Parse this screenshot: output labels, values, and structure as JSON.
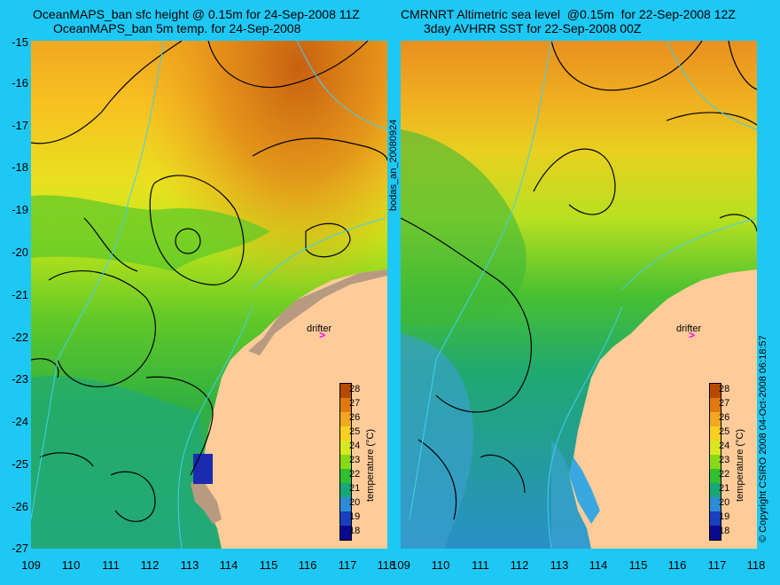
{
  "left_title": {
    "line1": "OceanMAPS_ban sfc height @ 0.15m for 24-Sep-2008 11Z",
    "line2": "OceanMAPS_ban 5m temp. for 24-Sep-2008"
  },
  "right_title": {
    "line1": "CMRNRT Altimetric sea level  @0.15m  for 22-Sep-2008 12Z",
    "line2": "3day AVHRR SST for 22-Sep-2008 00Z"
  },
  "lat_ticks": [
    "-15",
    "-16",
    "-17",
    "-18",
    "-19",
    "-20",
    "-21",
    "-22",
    "-23",
    "-24",
    "-25",
    "-26",
    "-27"
  ],
  "lon_ticks": [
    "109",
    "110",
    "111",
    "112",
    "113",
    "114",
    "115",
    "116",
    "117",
    "118"
  ],
  "colorbar": {
    "title": "temperature (°C)",
    "ticks": [
      "28",
      "27",
      "26",
      "25",
      "24",
      "23",
      "22",
      "21",
      "20",
      "19",
      "18"
    ],
    "colors": [
      "#b84a00",
      "#e07a10",
      "#f0a820",
      "#f8d020",
      "#d8e820",
      "#88d818",
      "#30c030",
      "#18a878",
      "#2c8cd8",
      "#1840c0",
      "#0a0a90"
    ]
  },
  "marker_label": "drifter",
  "middle_label": "bodas_an_20080924",
  "copyright": "© Copyright CSIRO 2008   04-Oct-2008 06:18:57",
  "colors": {
    "background": "#1ec8f4",
    "land": "#ffcc99",
    "contour": "#000000",
    "bathymetry": "#40d0f0",
    "marker": "#ff00ff"
  }
}
